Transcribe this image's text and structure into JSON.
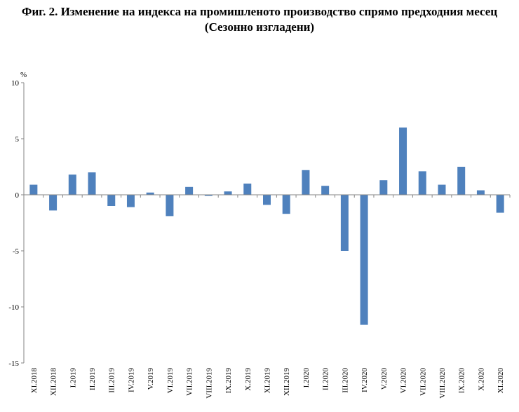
{
  "title_line1": "Фиг. 2. Изменение на индекса на промишленото производство спрямо предходния месец",
  "title_line2": "(Сезонно изгладени)",
  "chart_data": {
    "type": "bar",
    "ylabel": "%",
    "ylim": [
      -15,
      10
    ],
    "yticks": [
      10,
      5,
      0,
      -5,
      -10,
      -15
    ],
    "grid": false,
    "bar_color": "#4f81bd",
    "categories": [
      "XI.2018",
      "XII.2018",
      "I.2019",
      "II.2019",
      "III.2019",
      "IV.2019",
      "V.2019",
      "VI.2019",
      "VII.2019",
      "VIII.2019",
      "IX.2019",
      "X.2019",
      "XI.2019",
      "XII.2019",
      "I.2020",
      "II.2020",
      "III.2020",
      "IV.2020",
      "V.2020",
      "VI.2020",
      "VII.2020",
      "VIII.2020",
      "IX.2020",
      "X.2020",
      "XI.2020"
    ],
    "values": [
      0.9,
      -1.4,
      1.8,
      2.0,
      -1.0,
      -1.1,
      0.2,
      -1.9,
      0.7,
      -0.1,
      0.3,
      1.0,
      -0.9,
      -1.7,
      2.2,
      0.8,
      -5.0,
      -11.6,
      1.3,
      6.0,
      2.1,
      0.9,
      2.5,
      0.4,
      -1.6
    ]
  }
}
